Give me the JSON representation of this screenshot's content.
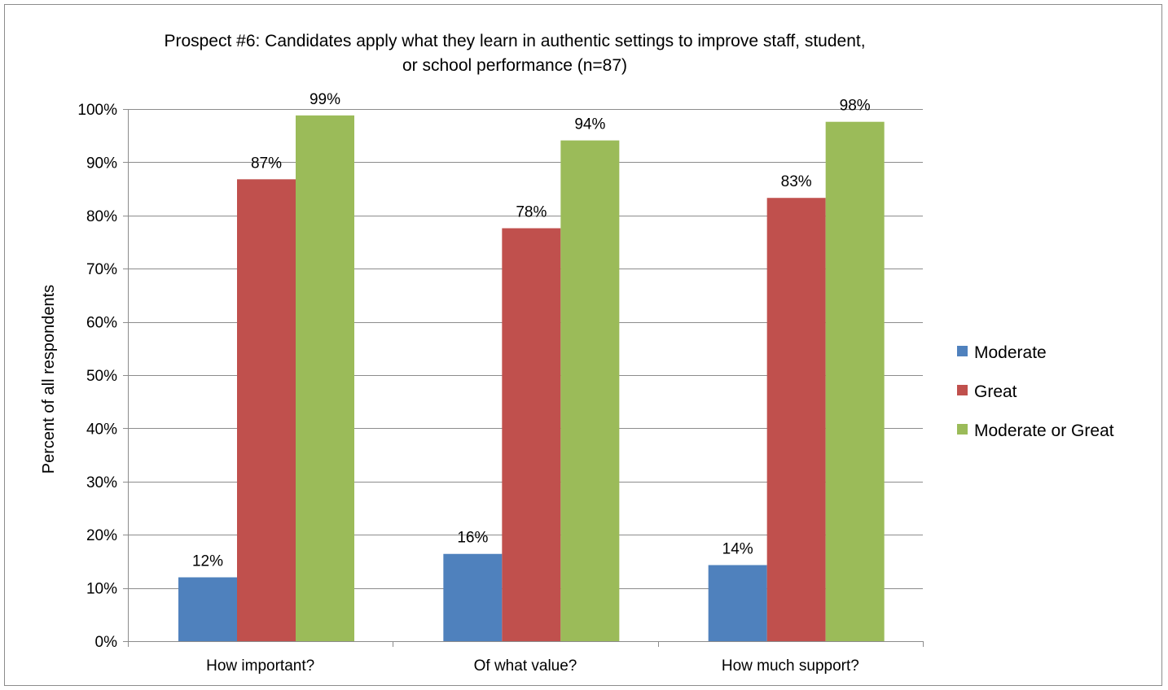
{
  "chart_data": {
    "type": "bar",
    "title_lines": [
      "Prospect #6:  Candidates apply what they learn in authentic settings to improve staff, student,",
      "or school performance (n=87)"
    ],
    "xlabel": "",
    "ylabel": "Percent of all respondents",
    "ylim": [
      0,
      100
    ],
    "y_ticks": [
      0,
      10,
      20,
      30,
      40,
      50,
      60,
      70,
      80,
      90,
      100
    ],
    "y_tick_labels": [
      "0%",
      "10%",
      "20%",
      "30%",
      "40%",
      "50%",
      "60%",
      "70%",
      "80%",
      "90%",
      "100%"
    ],
    "grid": true,
    "legend_position": "right",
    "categories": [
      "How important?",
      "Of what value?",
      "How much support?"
    ],
    "series": [
      {
        "name": "Moderate",
        "color": "#4f81bd",
        "values": [
          12,
          16.4,
          14.3
        ],
        "labels": [
          "12%",
          "16%",
          "14%"
        ]
      },
      {
        "name": "Great",
        "color": "#c0504d",
        "values": [
          86.8,
          77.6,
          83.3
        ],
        "labels": [
          "87%",
          "78%",
          "83%"
        ]
      },
      {
        "name": "Moderate or Great",
        "color": "#9bbb59",
        "values": [
          98.8,
          94.1,
          97.6
        ],
        "labels": [
          "99%",
          "94%",
          "98%"
        ]
      }
    ]
  }
}
